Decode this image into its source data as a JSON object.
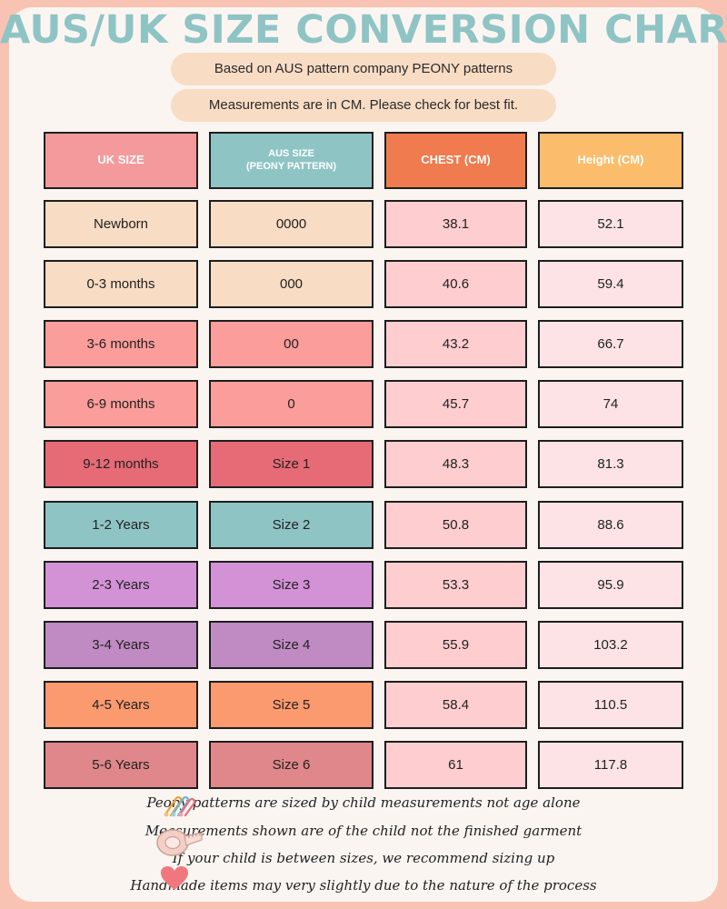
{
  "title": "AUS/UK SIZE CONVERSION CHART",
  "subtitles": [
    "Based on AUS pattern company PEONY patterns",
    "Measurements are in CM. Please check for best fit."
  ],
  "table": {
    "headers": [
      {
        "text": "UK SIZE",
        "color": "#f59a9c"
      },
      {
        "text": "AUS SIZE\n(PEONY PATTERN)",
        "color": "#8fc4c5"
      },
      {
        "text": "CHEST (CM)",
        "color": "#ef7b4f"
      },
      {
        "text": "Height (CM)",
        "color": "#fbbd6b"
      }
    ],
    "rows": [
      {
        "uk": "Newborn",
        "aus": "0000",
        "chest": "38.1",
        "height": "52.1",
        "color": "#f8dcc4"
      },
      {
        "uk": "0-3 months",
        "aus": "000",
        "chest": "40.6",
        "height": "59.4",
        "color": "#f8dcc4"
      },
      {
        "uk": "3-6 months",
        "aus": "00",
        "chest": "43.2",
        "height": "66.7",
        "color": "#fb9d9a"
      },
      {
        "uk": "6-9 months",
        "aus": "0",
        "chest": "45.7",
        "height": "74",
        "color": "#fb9d9a"
      },
      {
        "uk": "9-12 months",
        "aus": "Size 1",
        "chest": "48.3",
        "height": "81.3",
        "color": "#e66b76"
      },
      {
        "uk": "1-2 Years",
        "aus": "Size 2",
        "chest": "50.8",
        "height": "88.6",
        "color": "#8fc4c5"
      },
      {
        "uk": "2-3 Years",
        "aus": "Size 3",
        "chest": "53.3",
        "height": "95.9",
        "color": "#d392d5"
      },
      {
        "uk": "3-4 Years",
        "aus": "Size 4",
        "chest": "55.9",
        "height": "103.2",
        "color": "#c08ac3"
      },
      {
        "uk": "4-5 Years",
        "aus": "Size 5",
        "chest": "58.4",
        "height": "110.5",
        "color": "#fb9a6e"
      },
      {
        "uk": "5-6 Years",
        "aus": "Size 6",
        "chest": "61",
        "height": "117.8",
        "color": "#df878a"
      }
    ],
    "chest_cell_color": "#fecdd0",
    "height_cell_color": "#fde3e5"
  },
  "notes": [
    {
      "text": "Peony patterns are sized by child measurements not age alone",
      "icon": "safety-pins-icon"
    },
    {
      "text": "Measurements shown are of the child not the finished garment",
      "icon": "tape-measure-icon"
    },
    {
      "text": "If your child is between sizes, we recommend sizing up",
      "icon": ""
    },
    {
      "text": "Handmade items may very slightly due to the nature of the process",
      "icon": "heart-icon"
    }
  ]
}
